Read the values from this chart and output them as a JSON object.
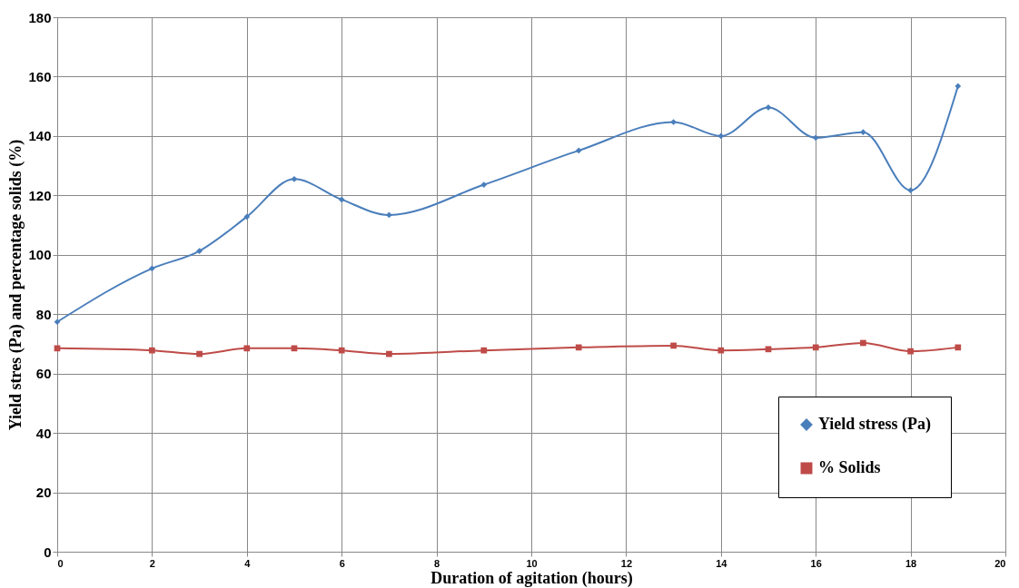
{
  "chart_data": {
    "type": "line",
    "xlabel": "Duration of agitation (hours)",
    "ylabel": "Yield stres (Pa)   and percentage solids (%)",
    "x": [
      0,
      2,
      3,
      4,
      5,
      6,
      7,
      9,
      11,
      13,
      14,
      15,
      16,
      17,
      18,
      19
    ],
    "series": [
      {
        "name": "Yield stress (Pa)",
        "color": "#4a7ebb",
        "marker": "diamond",
        "values": [
          77.4,
          95.4,
          101.3,
          112.8,
          125.5,
          118.6,
          113.4,
          123.6,
          135.1,
          144.7,
          140.0,
          149.6,
          139.4,
          141.3,
          121.7,
          156.8
        ]
      },
      {
        "name": "% Solids",
        "color": "#be4b48",
        "marker": "square",
        "values": [
          68.5,
          67.8,
          66.6,
          68.5,
          68.5,
          67.8,
          66.6,
          67.8,
          68.8,
          69.4,
          67.8,
          68.2,
          68.8,
          70.3,
          67.5,
          68.8
        ]
      }
    ],
    "xlim": [
      0,
      20
    ],
    "xticks": [
      0,
      2,
      4,
      6,
      8,
      10,
      12,
      14,
      16,
      18,
      20
    ],
    "ylim": [
      0,
      180
    ],
    "yticks": [
      0,
      20,
      40,
      60,
      80,
      100,
      120,
      140,
      160,
      180
    ],
    "grid": true,
    "legend": "bottom right",
    "line_style": "solid"
  }
}
